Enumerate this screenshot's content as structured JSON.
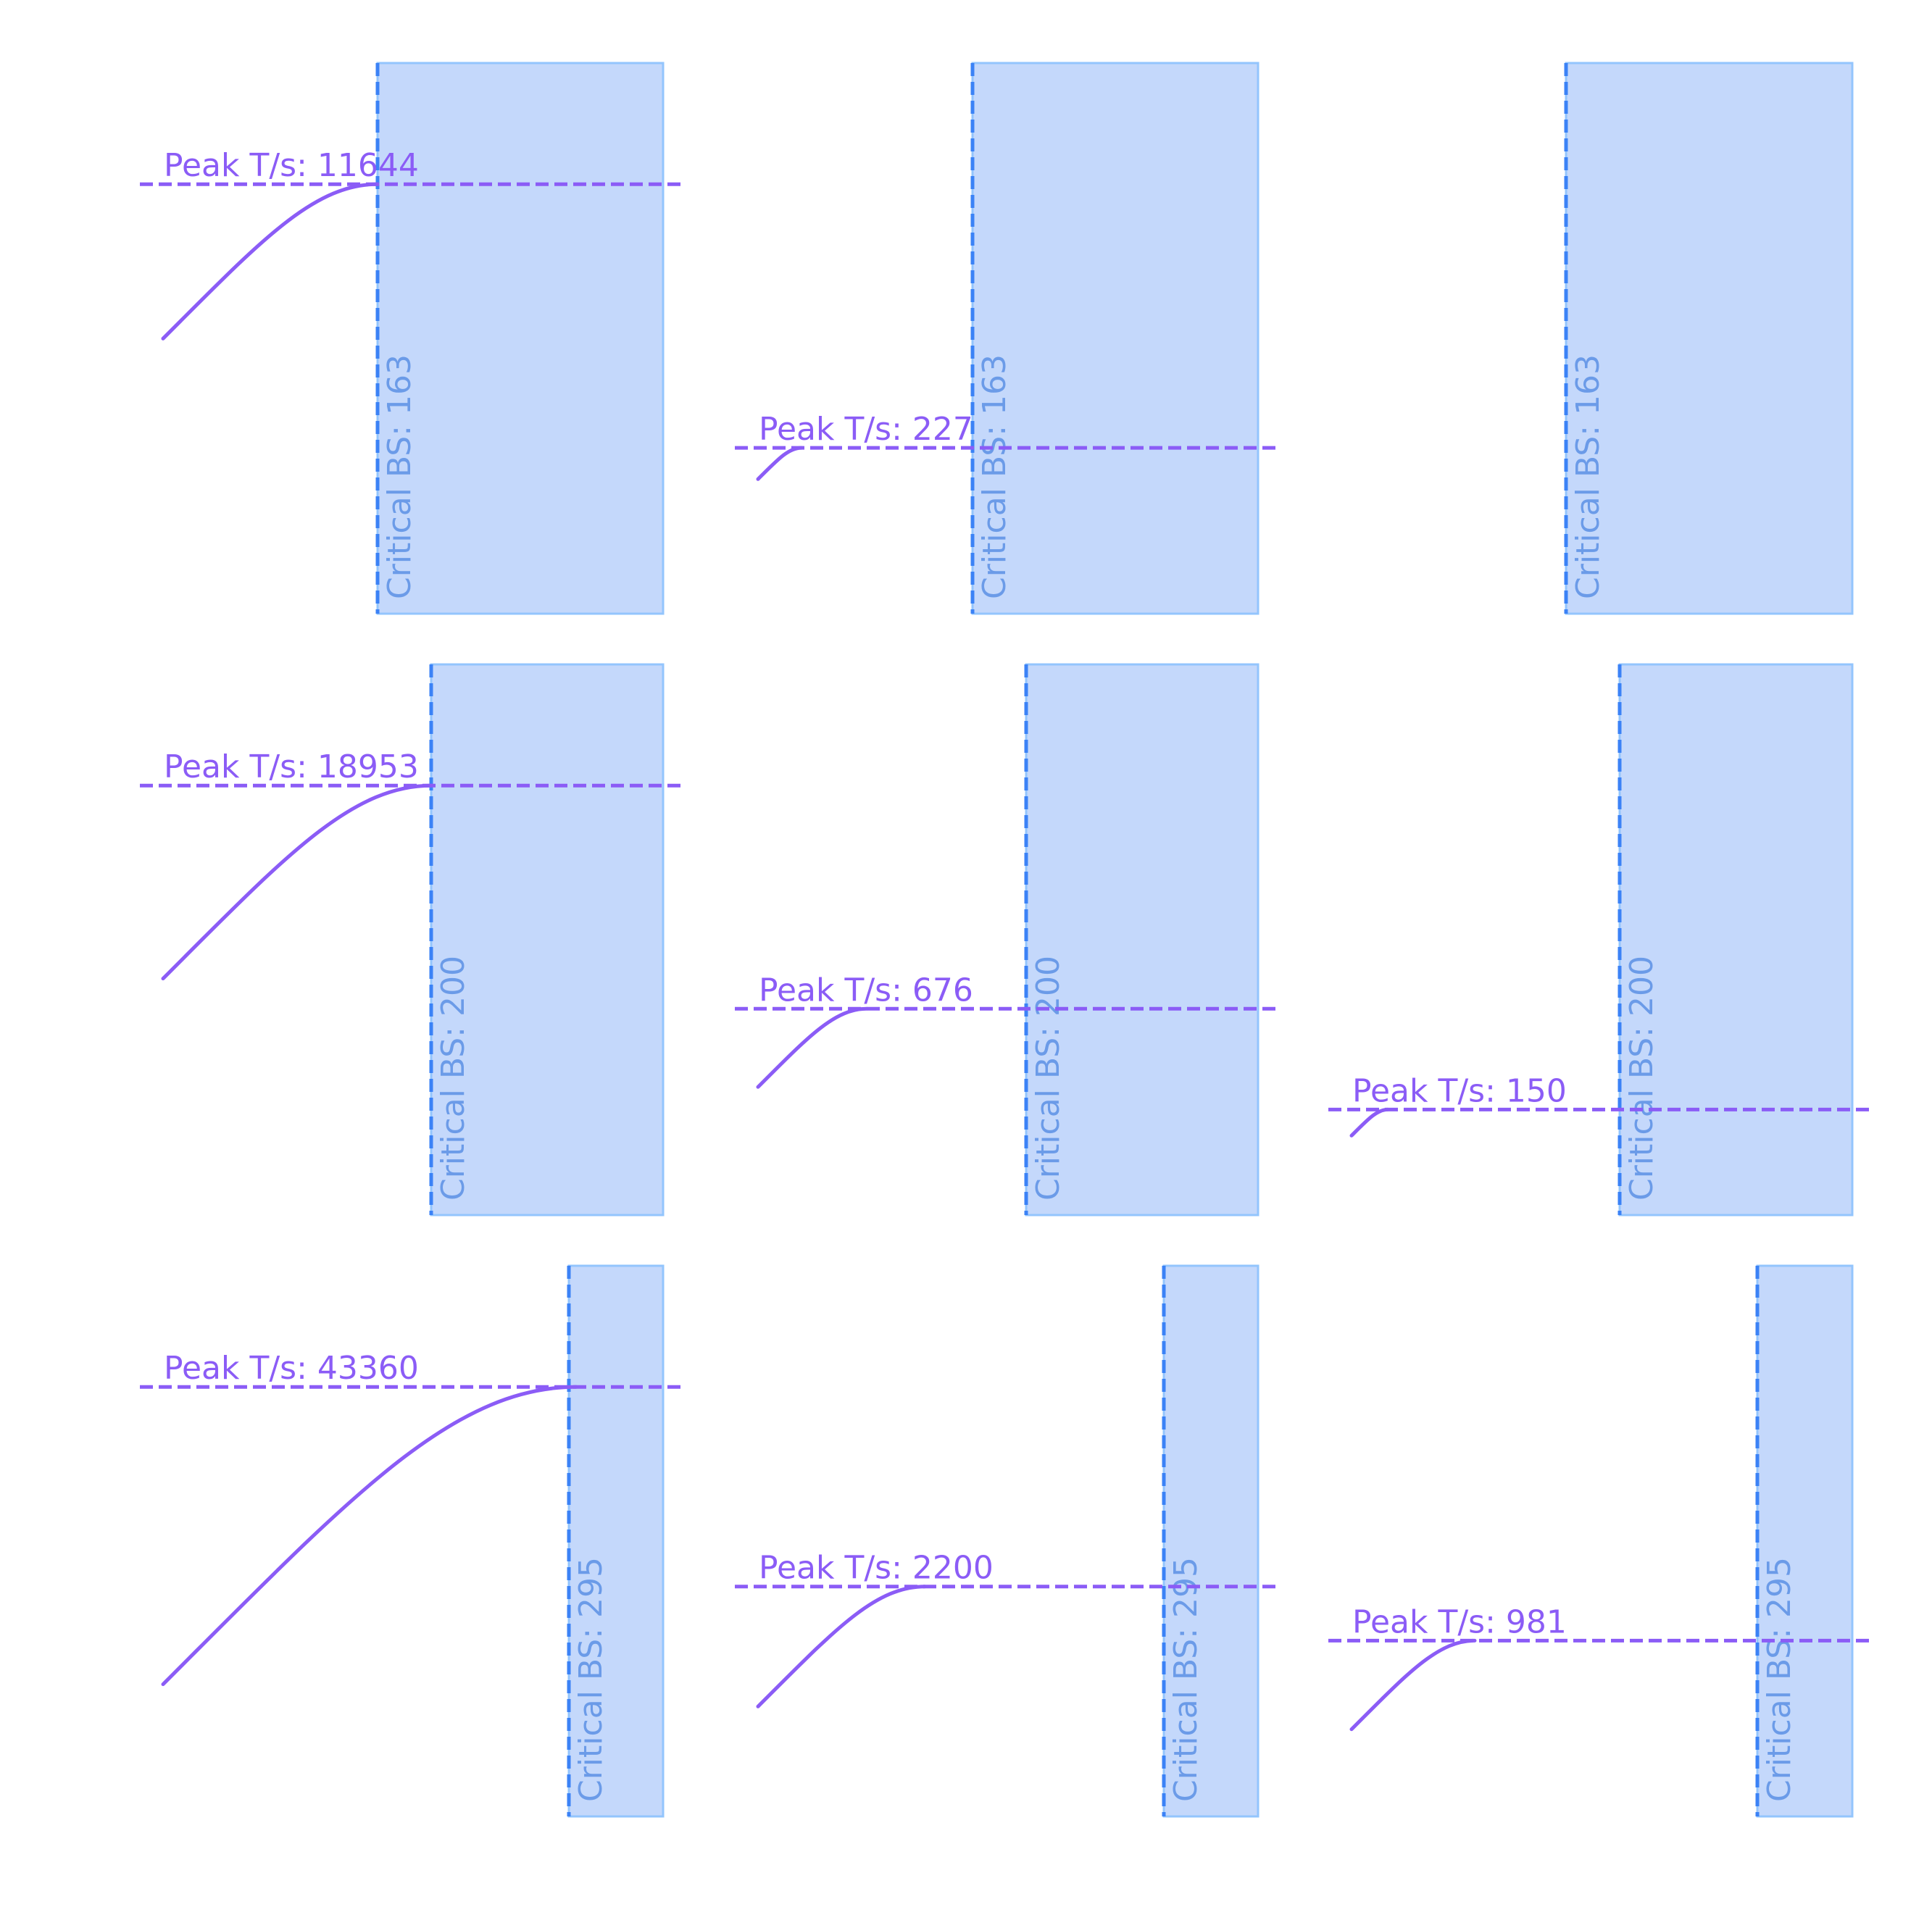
{
  "chart_data": {
    "type": "line",
    "layout": "3x3 small multiples",
    "colors": {
      "curve": "#8b5cf6",
      "peak_line": "#8b5cf6",
      "critical_line": "#3b82f6",
      "critical_region_fill": "#c4d8fb",
      "critical_region_edge": "#93c5fd",
      "critical_label": "#6b9be8"
    },
    "panels": [
      {
        "row": 0,
        "col": 0,
        "peak_label": "Peak T/s: 11644",
        "peak_value": 11644,
        "critical_label": "Critical BS: 163",
        "critical_bs": 163,
        "curve_end_bs": 163
      },
      {
        "row": 0,
        "col": 1,
        "peak_label": "Peak T/s: 227",
        "peak_value": 227,
        "critical_label": "Critical BS: 163",
        "critical_bs": 163,
        "curve_end_bs": 45
      },
      {
        "row": 0,
        "col": 2,
        "peak_label": "",
        "peak_value": null,
        "critical_label": "Critical BS: 163",
        "critical_bs": 163,
        "curve_end_bs": 0
      },
      {
        "row": 1,
        "col": 0,
        "peak_label": "Peak T/s: 18953",
        "peak_value": 18953,
        "critical_label": "Critical BS: 200",
        "critical_bs": 200,
        "curve_end_bs": 200
      },
      {
        "row": 1,
        "col": 1,
        "peak_label": "Peak T/s: 676",
        "peak_value": 676,
        "critical_label": "Critical BS: 200",
        "critical_bs": 200,
        "curve_end_bs": 90
      },
      {
        "row": 1,
        "col": 2,
        "peak_label": "Peak T/s: 150",
        "peak_value": 150,
        "critical_label": "Critical BS: 200",
        "critical_bs": 200,
        "curve_end_bs": 40
      },
      {
        "row": 2,
        "col": 0,
        "peak_label": "Peak T/s: 43360",
        "peak_value": 43360,
        "critical_label": "Critical BS: 295",
        "critical_bs": 295,
        "curve_end_bs": 300
      },
      {
        "row": 2,
        "col": 1,
        "peak_label": "Peak T/s: 2200",
        "peak_value": 2200,
        "critical_label": "Critical BS: 295",
        "critical_bs": 295,
        "curve_end_bs": 130
      },
      {
        "row": 2,
        "col": 2,
        "peak_label": "Peak T/s: 981",
        "peak_value": 981,
        "critical_label": "Critical BS: 295",
        "critical_bs": 295,
        "curve_end_bs": 100
      }
    ]
  }
}
